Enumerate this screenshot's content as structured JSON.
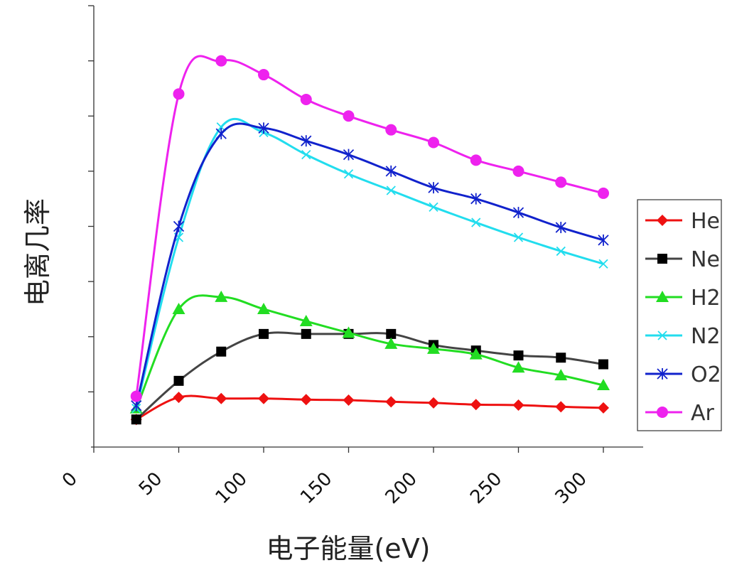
{
  "chart_data": {
    "type": "line",
    "xlabel": "电子能量(eV)",
    "ylabel": "电离几率",
    "xlim": [
      0,
      330
    ],
    "ylim": [
      0,
      8
    ],
    "x_ticks": [
      0,
      50,
      100,
      150,
      200,
      250,
      300
    ],
    "y_tick_count": 8,
    "x": [
      25,
      50,
      75,
      100,
      125,
      150,
      175,
      200,
      225,
      250,
      275,
      300
    ],
    "series": [
      {
        "name": "He",
        "color": "#ee1111",
        "marker": "diamond",
        "values": [
          0.5,
          0.9,
          0.88,
          0.88,
          0.86,
          0.85,
          0.82,
          0.8,
          0.77,
          0.76,
          0.73,
          0.71
        ]
      },
      {
        "name": "Ne",
        "color": "#444444",
        "marker": "square",
        "values": [
          0.5,
          1.2,
          1.73,
          2.05,
          2.05,
          2.05,
          2.05,
          1.85,
          1.75,
          1.66,
          1.62,
          1.5
        ]
      },
      {
        "name": "H2",
        "color": "#22dd22",
        "marker": "triangle",
        "values": [
          0.7,
          2.5,
          2.72,
          2.5,
          2.28,
          2.07,
          1.87,
          1.78,
          1.68,
          1.44,
          1.3,
          1.12
        ]
      },
      {
        "name": "N2",
        "color": "#22ddee",
        "marker": "x",
        "values": [
          0.7,
          3.8,
          5.8,
          5.7,
          5.3,
          4.95,
          4.65,
          4.35,
          4.07,
          3.8,
          3.55,
          3.32
        ]
      },
      {
        "name": "O2",
        "color": "#1122cc",
        "marker": "asterisk",
        "values": [
          0.75,
          4.0,
          5.68,
          5.78,
          5.55,
          5.3,
          5.0,
          4.7,
          4.5,
          4.25,
          3.98,
          3.75
        ]
      },
      {
        "name": "Ar",
        "color": "#ee22ee",
        "marker": "circle",
        "values": [
          0.92,
          6.4,
          7.0,
          6.75,
          6.3,
          6.0,
          5.75,
          5.52,
          5.2,
          5.0,
          4.8,
          4.6
        ]
      }
    ]
  }
}
